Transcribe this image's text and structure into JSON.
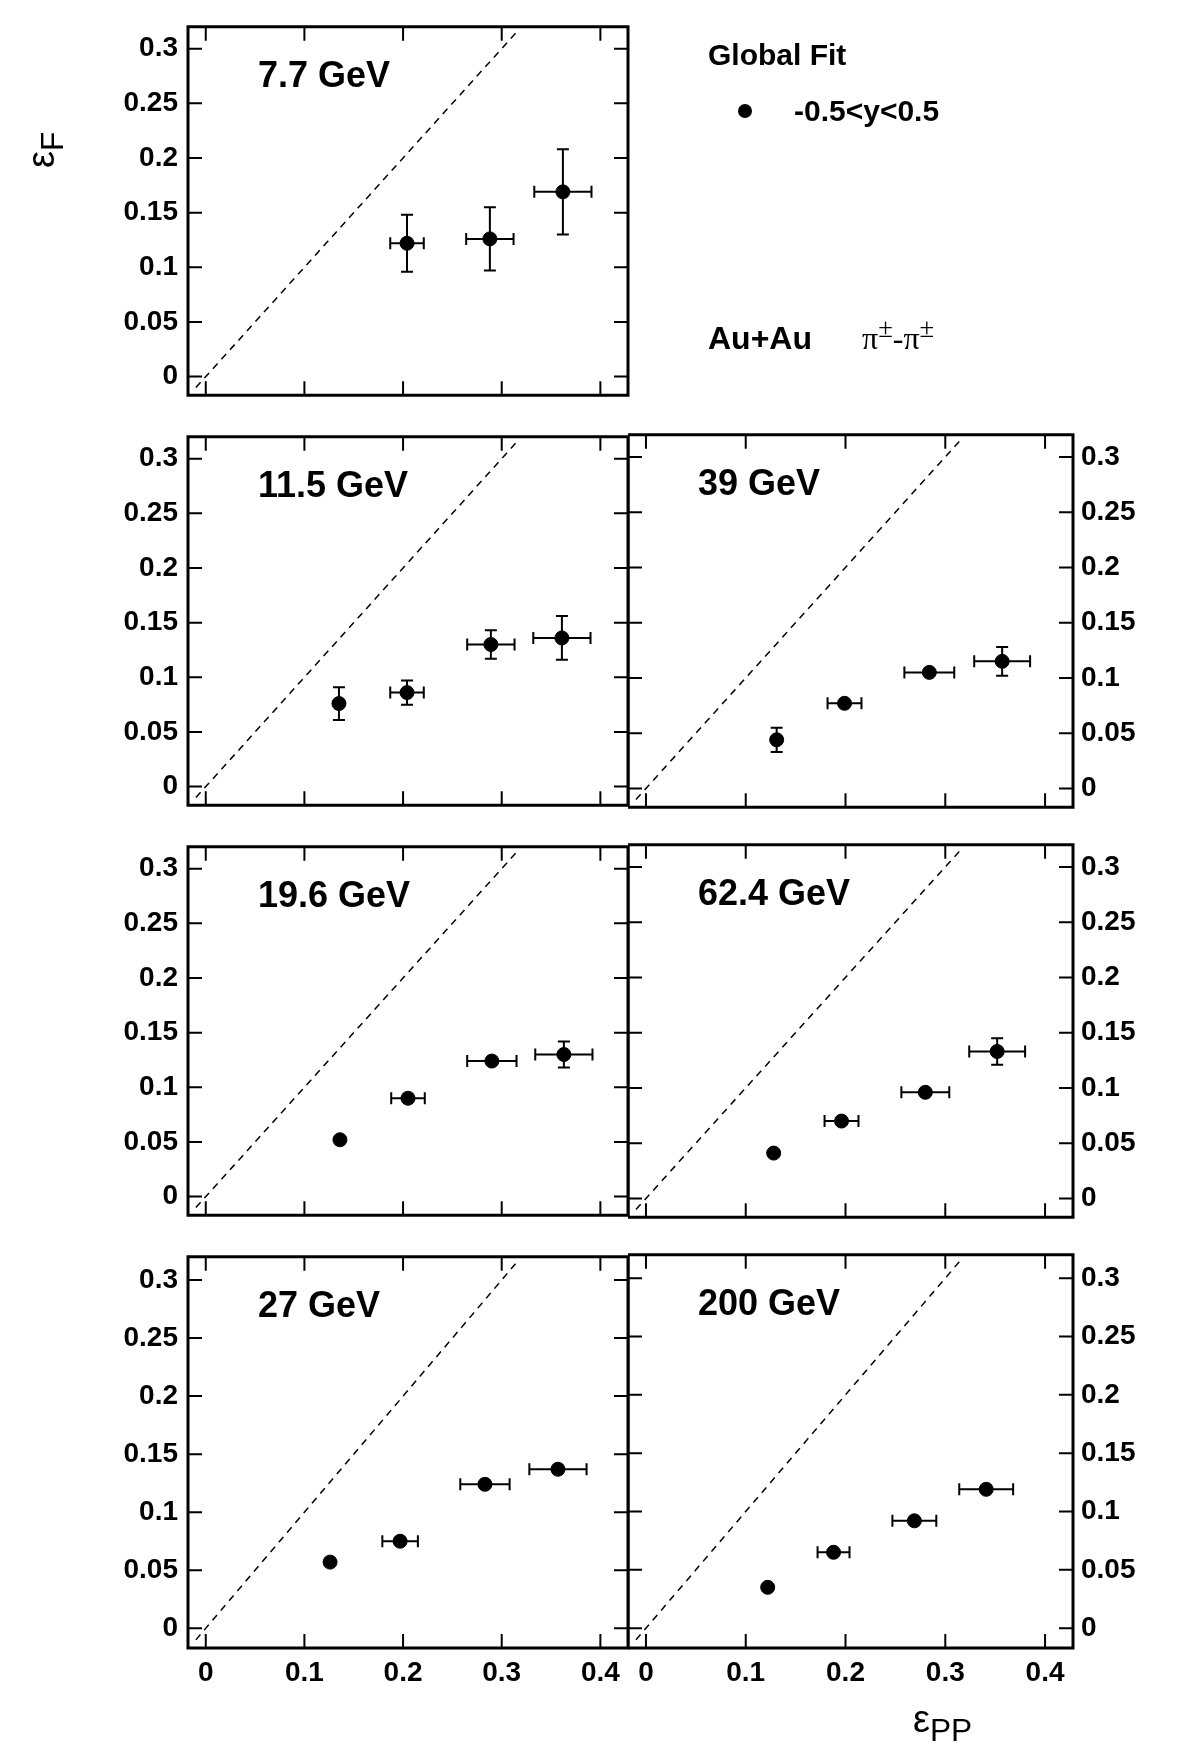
{
  "chart_data": [
    {
      "type": "scatter",
      "title": "7.7 GeV",
      "ylabel": "ε$_{F}$",
      "legend_title": "Global Fit",
      "legend": "right",
      "annotations": [
        "Au+Au",
        "π$^{±}$-π$^{±}$"
      ],
      "xlim": [
        -0.018,
        0.428
      ],
      "ylim": [
        -0.017,
        0.32
      ],
      "xticks": [
        0,
        0.1,
        0.2,
        0.3,
        0.4
      ],
      "yticks": [
        0,
        0.05,
        0.1,
        0.15,
        0.2,
        0.25,
        0.3
      ],
      "tick_labels": "y",
      "series": [
        {
          "type": "line",
          "x": [
            -0.01,
            0.314
          ],
          "values": [
            -0.01,
            0.314
          ],
          "color": "#000000",
          "line_style": "dashed",
          "marker": "none"
        },
        {
          "type": "scatter",
          "name": "-0.5<y<0.5",
          "marker": "circle",
          "color": "#000000",
          "x": [
            0.204,
            0.288,
            0.362
          ],
          "values": [
            0.122,
            0.126,
            0.169
          ],
          "errors": [
            0.026,
            0.029,
            0.039
          ],
          "xerrors": [
            0.017,
            0.024,
            0.029
          ]
        }
      ]
    },
    {
      "type": "scatter",
      "title": "11.5 GeV",
      "xlim": [
        -0.018,
        0.428
      ],
      "ylim": [
        -0.017,
        0.32
      ],
      "xticks": [
        0,
        0.1,
        0.2,
        0.3,
        0.4
      ],
      "yticks": [
        0,
        0.05,
        0.1,
        0.15,
        0.2,
        0.25,
        0.3
      ],
      "tick_labels": "y",
      "series": [
        {
          "type": "line",
          "x": [
            -0.01,
            0.314
          ],
          "values": [
            -0.01,
            0.314
          ],
          "color": "#000000",
          "line_style": "dashed",
          "marker": "none"
        },
        {
          "type": "scatter",
          "marker": "circle",
          "color": "#000000",
          "x": [
            0.135,
            0.204,
            0.289,
            0.361
          ],
          "values": [
            0.076,
            0.086,
            0.13,
            0.136
          ],
          "errors": [
            0.015,
            0.011,
            0.013,
            0.02
          ],
          "xerrors": [
            null,
            0.017,
            0.024,
            0.029
          ]
        }
      ]
    },
    {
      "type": "scatter",
      "title": "39 GeV",
      "xlim": [
        -0.018,
        0.428
      ],
      "y2lim": [
        -0.017,
        0.32
      ],
      "xticks": [
        0,
        0.1,
        0.2,
        0.3,
        0.4
      ],
      "y2ticks": [
        0,
        0.05,
        0.1,
        0.15,
        0.2,
        0.25,
        0.3
      ],
      "tick_labels": "y",
      "series": [
        {
          "type": "line",
          "axis": "y2",
          "x": [
            -0.01,
            0.314
          ],
          "values": [
            -0.01,
            0.314
          ],
          "color": "#000000",
          "line_style": "dashed",
          "marker": "none"
        },
        {
          "type": "scatter",
          "axis": "y2",
          "marker": "circle",
          "color": "#000000",
          "x": [
            0.131,
            0.199,
            0.284,
            0.357
          ],
          "values": [
            0.044,
            0.077,
            0.105,
            0.115
          ],
          "errors": [
            0.011,
            null,
            null,
            0.013
          ],
          "xerrors": [
            null,
            0.017,
            0.025,
            0.028
          ]
        }
      ]
    },
    {
      "type": "scatter",
      "title": "19.6 GeV",
      "xlim": [
        -0.018,
        0.428
      ],
      "ylim": [
        -0.017,
        0.32
      ],
      "xticks": [
        0,
        0.1,
        0.2,
        0.3,
        0.4
      ],
      "yticks": [
        0,
        0.05,
        0.1,
        0.15,
        0.2,
        0.25,
        0.3
      ],
      "tick_labels": "y",
      "series": [
        {
          "type": "line",
          "x": [
            -0.01,
            0.314
          ],
          "values": [
            -0.01,
            0.314
          ],
          "color": "#000000",
          "line_style": "dashed",
          "marker": "none"
        },
        {
          "type": "scatter",
          "marker": "circle",
          "color": "#000000",
          "x": [
            0.136,
            0.205,
            0.29,
            0.363
          ],
          "values": [
            0.052,
            0.09,
            0.124,
            0.13
          ],
          "errors": [
            null,
            null,
            null,
            0.012
          ],
          "xerrors": [
            null,
            0.017,
            0.025,
            0.029
          ]
        }
      ]
    },
    {
      "type": "scatter",
      "title": "62.4 GeV",
      "xlim": [
        -0.018,
        0.428
      ],
      "y2lim": [
        -0.017,
        0.32
      ],
      "xticks": [
        0,
        0.1,
        0.2,
        0.3,
        0.4
      ],
      "y2ticks": [
        0,
        0.05,
        0.1,
        0.15,
        0.2,
        0.25,
        0.3
      ],
      "tick_labels": "y",
      "series": [
        {
          "type": "line",
          "axis": "y2",
          "x": [
            -0.01,
            0.314
          ],
          "values": [
            -0.01,
            0.314
          ],
          "color": "#000000",
          "line_style": "dashed",
          "marker": "none"
        },
        {
          "type": "scatter",
          "axis": "y2",
          "marker": "circle",
          "color": "#000000",
          "x": [
            0.128,
            0.196,
            0.28,
            0.352
          ],
          "values": [
            0.041,
            0.07,
            0.096,
            0.133
          ],
          "errors": [
            null,
            null,
            null,
            0.012
          ],
          "xerrors": [
            null,
            0.017,
            0.024,
            0.028
          ]
        }
      ]
    },
    {
      "type": "scatter",
      "title": "27 GeV",
      "xlim": [
        -0.018,
        0.428
      ],
      "ylim": [
        -0.017,
        0.32
      ],
      "xticks": [
        0,
        0.1,
        0.2,
        0.3,
        0.4
      ],
      "yticks": [
        0,
        0.05,
        0.1,
        0.15,
        0.2,
        0.25,
        0.3
      ],
      "series": [
        {
          "type": "line",
          "x": [
            -0.01,
            0.314
          ],
          "values": [
            -0.01,
            0.314
          ],
          "color": "#000000",
          "line_style": "dashed",
          "marker": "none"
        },
        {
          "type": "scatter",
          "marker": "circle",
          "color": "#000000",
          "x": [
            0.126,
            0.197,
            0.283,
            0.357
          ],
          "values": [
            0.057,
            0.075,
            0.124,
            0.137
          ],
          "xerrors": [
            null,
            0.018,
            0.025,
            0.029
          ]
        }
      ]
    },
    {
      "type": "scatter",
      "title": "200 GeV",
      "xlabel": "ε$_{PP}$",
      "xlim": [
        -0.018,
        0.428
      ],
      "y2lim": [
        -0.017,
        0.32
      ],
      "xticks": [
        0,
        0.1,
        0.2,
        0.3,
        0.4
      ],
      "y2ticks": [
        0,
        0.05,
        0.1,
        0.15,
        0.2,
        0.25,
        0.3
      ],
      "series": [
        {
          "type": "line",
          "axis": "y2",
          "x": [
            -0.01,
            0.314
          ],
          "values": [
            -0.01,
            0.314
          ],
          "color": "#000000",
          "line_style": "dashed",
          "marker": "none"
        },
        {
          "type": "scatter",
          "axis": "y2",
          "marker": "circle",
          "color": "#000000",
          "x": [
            0.122,
            0.188,
            0.269,
            0.341
          ],
          "values": [
            0.035,
            0.065,
            0.092,
            0.119
          ],
          "xerrors": [
            null,
            0.016,
            0.022,
            0.027
          ]
        }
      ]
    }
  ]
}
